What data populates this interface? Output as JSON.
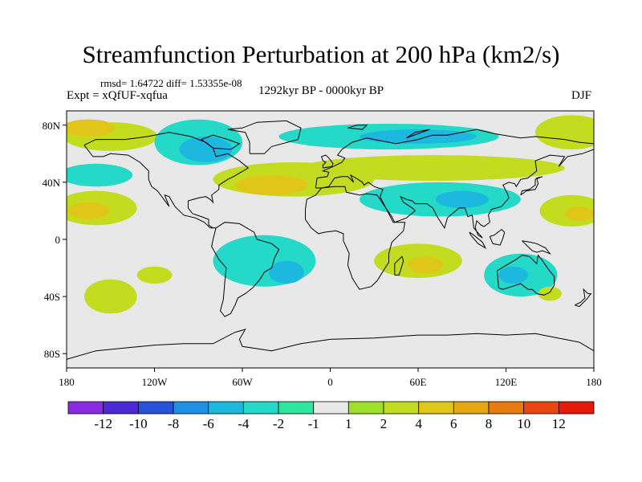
{
  "title": "Streamfunction Perturbation at 200 hPa (km2/s)",
  "stats": "rmsd= 1.64722 diff= 1.53355e-08",
  "experiment": "Expt = xQfUF-xqfua",
  "period": "1292kyr BP - 0000kyr BP",
  "season": "DJF",
  "map": {
    "projection": "cylindrical equidistant",
    "lon_range": [
      -180,
      180
    ],
    "lat_range": [
      -90,
      90
    ],
    "lon_ticks": [
      {
        "lon": -180,
        "label": "180"
      },
      {
        "lon": -120,
        "label": "120W"
      },
      {
        "lon": -60,
        "label": "60W"
      },
      {
        "lon": 0,
        "label": "0"
      },
      {
        "lon": 60,
        "label": "60E"
      },
      {
        "lon": 120,
        "label": "120E"
      },
      {
        "lon": 180,
        "label": "180"
      }
    ],
    "lat_ticks": [
      {
        "lat": 80,
        "label": "80N"
      },
      {
        "lat": 40,
        "label": "40N"
      },
      {
        "lat": 0,
        "label": "0"
      },
      {
        "lat": -40,
        "label": "40S"
      },
      {
        "lat": -80,
        "label": "80S"
      }
    ],
    "background_color": "#e8e8e8"
  },
  "colorbar": {
    "colors": [
      "#8a2be2",
      "#4b2ad6",
      "#2a52d9",
      "#1e90e6",
      "#1cb8e0",
      "#25d9c9",
      "#2ee6a0",
      "#e8e8e8",
      "#9fe02a",
      "#c4dc1f",
      "#e0c619",
      "#e8a614",
      "#e87a12",
      "#e8480f",
      "#e61a0a"
    ],
    "labels": [
      "-12",
      "-10",
      "-8",
      "-6",
      "-4",
      "-2",
      "-1",
      "1",
      "2",
      "4",
      "6",
      "8",
      "10",
      "12"
    ]
  },
  "field": {
    "description_levels": "contour interval bins matching colorbar",
    "regions": [
      {
        "name": "npac-arctic-positive",
        "level": 2,
        "lon": -150,
        "lat": 72,
        "rx": 32,
        "ry": 10
      },
      {
        "name": "npac-arctic-core",
        "level": 4,
        "lon": -165,
        "lat": 78,
        "rx": 18,
        "ry": 6
      },
      {
        "name": "arctic-canada-negative",
        "level": -2,
        "lon": -90,
        "lat": 68,
        "rx": 30,
        "ry": 16
      },
      {
        "name": "arctic-canada-core",
        "level": -4,
        "lon": -85,
        "lat": 63,
        "rx": 18,
        "ry": 9
      },
      {
        "name": "eurasia-arctic-negative",
        "level": -2,
        "lon": 40,
        "lat": 72,
        "rx": 75,
        "ry": 9
      },
      {
        "name": "eurasia-arctic-core",
        "level": -4,
        "lon": 60,
        "lat": 72,
        "rx": 40,
        "ry": 5
      },
      {
        "name": "npac-east-positive",
        "level": 2,
        "lon": 165,
        "lat": 75,
        "rx": 25,
        "ry": 12
      },
      {
        "name": "npac-west-negative",
        "level": -2,
        "lon": -160,
        "lat": 45,
        "rx": 25,
        "ry": 8
      },
      {
        "name": "atl-band-positive",
        "level": 2,
        "lon": -25,
        "lat": 42,
        "rx": 55,
        "ry": 12
      },
      {
        "name": "atl-band-core",
        "level": 4,
        "lon": -40,
        "lat": 38,
        "rx": 25,
        "ry": 7
      },
      {
        "name": "eurasia-band-positive",
        "level": 2,
        "lon": 70,
        "lat": 50,
        "rx": 90,
        "ry": 9
      },
      {
        "name": "asia-negative",
        "level": -2,
        "lon": 75,
        "lat": 28,
        "rx": 55,
        "ry": 12
      },
      {
        "name": "asia-core",
        "level": -4,
        "lon": 90,
        "lat": 28,
        "rx": 18,
        "ry": 6
      },
      {
        "name": "pac-tropic-positive",
        "level": 2,
        "lon": -160,
        "lat": 22,
        "rx": 28,
        "ry": 12
      },
      {
        "name": "pac-tropic-core",
        "level": 4,
        "lon": -165,
        "lat": 20,
        "rx": 14,
        "ry": 6
      },
      {
        "name": "east-pac-positive",
        "level": 2,
        "lon": 165,
        "lat": 20,
        "rx": 22,
        "ry": 11
      },
      {
        "name": "east-pac-core",
        "level": 4,
        "lon": 170,
        "lat": 18,
        "rx": 10,
        "ry": 5
      },
      {
        "name": "atl-tropic-negative",
        "level": -2,
        "lon": -45,
        "lat": -15,
        "rx": 35,
        "ry": 18
      },
      {
        "name": "atl-tropic-core",
        "level": -4,
        "lon": -30,
        "lat": -23,
        "rx": 12,
        "ry": 8
      },
      {
        "name": "indian-positive",
        "level": 2,
        "lon": 60,
        "lat": -15,
        "rx": 30,
        "ry": 12
      },
      {
        "name": "indian-core",
        "level": 4,
        "lon": 65,
        "lat": -18,
        "rx": 12,
        "ry": 6
      },
      {
        "name": "aus-negative",
        "level": -2,
        "lon": 130,
        "lat": -25,
        "rx": 25,
        "ry": 15
      },
      {
        "name": "aus-core",
        "level": -4,
        "lon": 125,
        "lat": -25,
        "rx": 10,
        "ry": 6
      },
      {
        "name": "spac-positive",
        "level": 2,
        "lon": -150,
        "lat": -40,
        "rx": 18,
        "ry": 12
      },
      {
        "name": "spac-east-positive",
        "level": 2,
        "lon": -120,
        "lat": -25,
        "rx": 12,
        "ry": 6
      },
      {
        "name": "nz-positive",
        "level": 2,
        "lon": 150,
        "lat": -38,
        "rx": 8,
        "ry": 5
      }
    ]
  }
}
